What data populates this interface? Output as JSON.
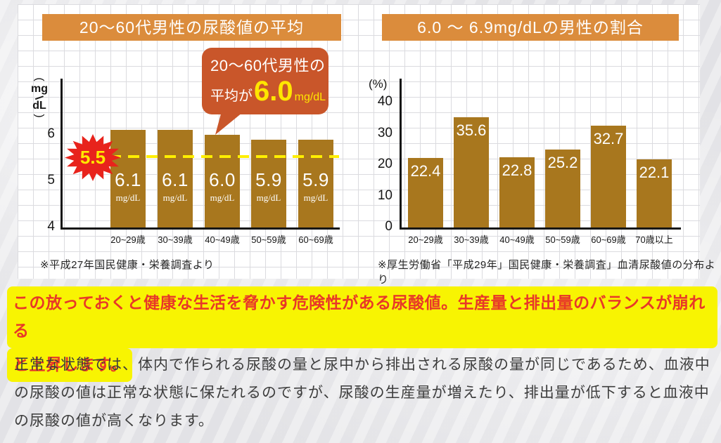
{
  "colors": {
    "paper_bg": "#e7e7ea",
    "panel_bg": "#ffffff",
    "grid_line": "#dbdbdf",
    "banner_bg": "#db8c3c",
    "bar_fill": "#a8771e",
    "callout_bg": "#c9562a",
    "callout_accent": "#ffe600",
    "starburst_red": "#e8231c",
    "dashed_yellow": "#ffef00",
    "highlight_yellow": "#f8f402",
    "highlight_text_red": "#e83828",
    "body_text": "#3d3d3d",
    "axis_black": "#161616"
  },
  "left_chart": {
    "title": "20〜60代男性の尿酸値の平均",
    "y_unit_parts": {
      "open": "(",
      "top": "mg",
      "slash": "/",
      "bottom": "dL",
      "close": ")"
    },
    "threshold_label": "5.5",
    "callout": {
      "line1": "20〜60代男性の",
      "prefix": "平均が",
      "value": "6.0",
      "unit": "mg/dL"
    },
    "source": "※平成27年国民健康・栄養調査より"
  },
  "right_chart": {
    "title": "6.0 〜 6.9mg/dLの男性の割合",
    "y_axis_label": "(%)",
    "source": "※厚生労働省「平成29年」国民健康・栄養調査」血清尿酸値の分布より"
  },
  "chart_data": [
    {
      "type": "bar",
      "title": "20〜60代男性の尿酸値の平均",
      "categories": [
        "20~29歳",
        "30~39歳",
        "40~49歳",
        "50~59歳",
        "60~69歳"
      ],
      "values": [
        6.1,
        6.1,
        6.0,
        5.9,
        5.9
      ],
      "value_labels": [
        "6.1",
        "6.1",
        "6.0",
        "5.9",
        "5.9"
      ],
      "value_unit": "mg/dL",
      "ylabel": "(mg/dL)",
      "yticks": [
        6,
        5,
        4
      ],
      "ylim": [
        4,
        7.2
      ],
      "grid": true,
      "legend": "none",
      "annotations": {
        "dashed_reference_line": 5.5,
        "badge_label": "5.5",
        "callout_text": "20〜60代男性の平均が6.0mg/dL"
      },
      "source": "※平成27年国民健康・栄養調査より"
    },
    {
      "type": "bar",
      "title": "6.0 〜 6.9mg/dLの男性の割合",
      "categories": [
        "20~29歳",
        "30~39歳",
        "40~49歳",
        "50~59歳",
        "60~69歳",
        "70歳以上"
      ],
      "values": [
        22.4,
        35.6,
        22.8,
        25.2,
        32.7,
        22.1
      ],
      "value_labels": [
        "22.4",
        "35.6",
        "22.8",
        "25.2",
        "32.7",
        "22.1"
      ],
      "ylabel": "(%)",
      "yticks": [
        40,
        30,
        20,
        10,
        0
      ],
      "ylim": [
        0,
        47
      ],
      "grid": true,
      "legend": "none",
      "source": "※厚生労働省「平成29年」国民健康・栄養調査」血清尿酸値の分布より"
    }
  ],
  "highlight": {
    "line1": "この放っておくと健康な生活を脅かす危険性がある尿酸値。生産量と排出量のバランスが崩れる",
    "line2": "と上昇します。"
  },
  "paragraph": "正常な状態では、体内で作られる尿酸の量と尿中から排出される尿酸の量が同じであるため、血液中の尿酸の値は正常な状態に保たれるのですが、尿酸の生産量が増えたり、排出量が低下すると血液中の尿酸の値が高くなります。"
}
